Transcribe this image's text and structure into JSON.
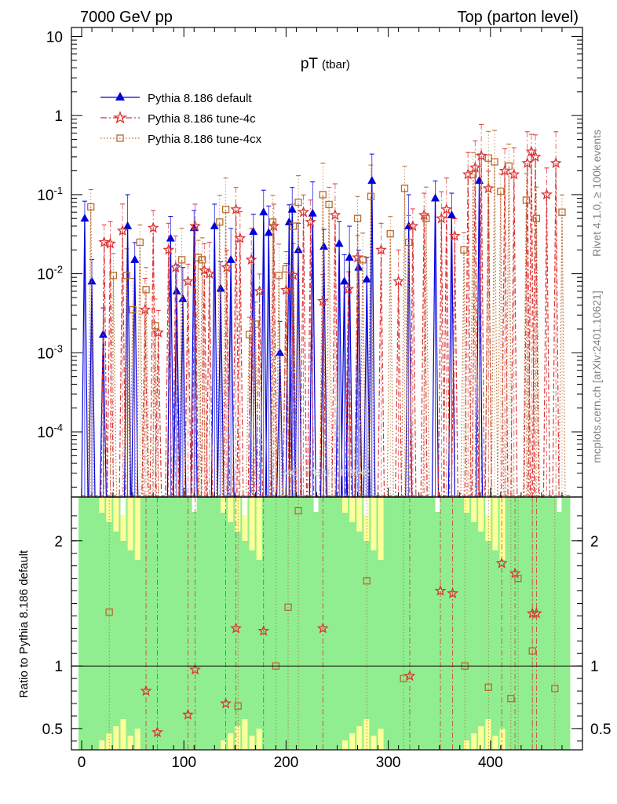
{
  "chart_data": {
    "type": "line",
    "header_left": "7000 GeV pp",
    "header_right": "Top (parton level)",
    "title": "pT",
    "title_sub": "(tbar)",
    "side_text_top": "Rivet 4.1.0, ≥ 100k events",
    "side_text_bottom": "mcplots.cern.ch [arXiv:2401.10621]",
    "watermark": "MC_TTBAR_TTBAR",
    "xlabel": "",
    "ratio_ylabel": "Ratio to Pythia 8.186 default",
    "xlim": [
      -10,
      490
    ],
    "ylim": [
      1.5e-05,
      13
    ],
    "ratio_ylim": [
      0.33,
      2.35
    ],
    "x_ticks": [
      "0",
      "100",
      "200",
      "300",
      "400"
    ],
    "y_ticks": [
      "10^-4",
      "10^-3",
      "10^-2",
      "10^-1",
      "1",
      "10"
    ],
    "ratio_ticks": [
      "0.5",
      "1",
      "2"
    ],
    "ratio_right_ticks": [
      "0.5",
      "1",
      "2"
    ],
    "legend": [
      {
        "label": "Pythia 8.186 default",
        "color": "#0000dd",
        "marker": "triangle",
        "dash": "solid"
      },
      {
        "label": "Pythia 8.186 tune-4c",
        "color": "#dd3333",
        "marker": "star",
        "dash": "dashdot"
      },
      {
        "label": "Pythia 8.186 tune-4cx",
        "color": "#b86a2e",
        "marker": "square",
        "dash": "dotted"
      }
    ],
    "band_colors": {
      "inner": "#90ee90",
      "outer": "#ffff99"
    },
    "series": [
      {
        "name": "Pythia 8.186 default",
        "x": [
          3,
          10,
          21,
          45,
          52,
          87,
          93,
          99,
          110,
          130,
          136,
          146,
          168,
          178,
          183,
          194,
          203,
          206,
          212,
          226,
          237,
          252,
          257,
          262,
          271,
          279,
          284,
          320,
          346,
          362,
          389
        ],
        "y": [
          0.05,
          0.008,
          0.0017,
          0.04,
          0.015,
          0.028,
          0.006,
          0.0048,
          0.038,
          0.04,
          0.0065,
          0.015,
          0.034,
          0.06,
          0.033,
          0.001,
          0.045,
          0.065,
          0.02,
          0.058,
          0.022,
          0.024,
          0.008,
          0.016,
          0.012,
          0.0085,
          0.15,
          0.04,
          0.09,
          0.055,
          0.15
        ]
      },
      {
        "name": "Pythia 8.186 tune-4c",
        "x": [
          22,
          28,
          40,
          62,
          70,
          75,
          85,
          92,
          104,
          111,
          120,
          125,
          142,
          151,
          155,
          166,
          174,
          188,
          200,
          207,
          217,
          224,
          236,
          248,
          261,
          270,
          293,
          310,
          324,
          335,
          352,
          357,
          365,
          378,
          385,
          391,
          398,
          414,
          423,
          436,
          440,
          444,
          455,
          464
        ],
        "y": [
          0.025,
          0.024,
          0.035,
          0.0035,
          0.038,
          0.0018,
          0.02,
          0.012,
          0.008,
          0.04,
          0.011,
          0.01,
          0.012,
          0.065,
          0.028,
          0.015,
          0.006,
          0.04,
          0.0062,
          0.0096,
          0.06,
          0.045,
          0.0045,
          0.055,
          0.0064,
          0.016,
          0.02,
          0.008,
          0.04,
          0.055,
          0.05,
          0.065,
          0.03,
          0.18,
          0.22,
          0.31,
          0.12,
          0.2,
          0.18,
          0.25,
          0.35,
          0.3,
          0.1,
          0.25
        ]
      },
      {
        "name": "Pythia 8.186 tune-4cx",
        "x": [
          9,
          31,
          44,
          50,
          57,
          63,
          72,
          98,
          114,
          118,
          135,
          141,
          164,
          170,
          187,
          193,
          200,
          207,
          212,
          236,
          242,
          270,
          275,
          283,
          302,
          316,
          320,
          337,
          374,
          383,
          398,
          404,
          410,
          418,
          435,
          445,
          470
        ],
        "y": [
          0.07,
          0.0095,
          0.0095,
          0.0035,
          0.025,
          0.0063,
          0.0022,
          0.015,
          0.016,
          0.015,
          0.045,
          0.065,
          0.0017,
          0.0023,
          0.045,
          0.0095,
          0.0115,
          0.04,
          0.08,
          0.1,
          0.075,
          0.05,
          0.015,
          0.095,
          0.032,
          0.12,
          0.025,
          0.05,
          0.02,
          0.18,
          0.29,
          0.26,
          0.11,
          0.23,
          0.085,
          0.05,
          0.06
        ]
      }
    ],
    "ratio_points": [
      {
        "series": "Pythia 8.186 tune-4c",
        "x": [
          63,
          74,
          104,
          111,
          141,
          151,
          178,
          236,
          321,
          351,
          363,
          411,
          424,
          441,
          445
        ],
        "y": [
          0.8,
          0.47,
          0.61,
          0.97,
          0.7,
          1.3,
          1.28,
          1.3,
          0.92,
          1.6,
          1.58,
          1.82,
          1.74,
          1.42,
          1.42
        ]
      },
      {
        "series": "Pythia 8.186 tune-4cx",
        "x": [
          27,
          153,
          190,
          202,
          212,
          279,
          315,
          375,
          398,
          420,
          427,
          441,
          463
        ],
        "y": [
          1.43,
          0.68,
          1.0,
          1.47,
          2.24,
          1.68,
          0.9,
          1.0,
          0.83,
          0.74,
          1.7,
          1.12,
          0.82
        ]
      }
    ]
  }
}
